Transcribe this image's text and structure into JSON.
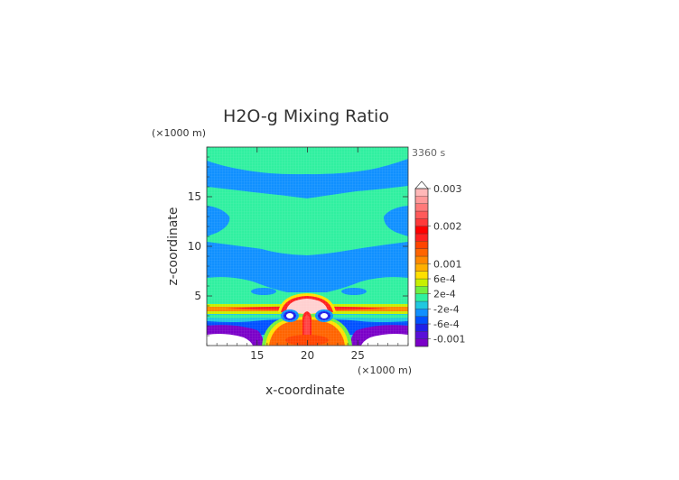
{
  "chart_data": {
    "type": "heatmap",
    "title": "H2O-g Mixing Ratio",
    "time_label": "3360 s",
    "x_unit": "(×1000 m)",
    "y_unit": "(×1000 m)",
    "xlabel": "x-coordinate",
    "ylabel": "z-coordinate",
    "xlim": [
      10,
      30
    ],
    "ylim": [
      0,
      20
    ],
    "x_ticks": [
      15,
      20,
      25
    ],
    "y_ticks": [
      5,
      10,
      15
    ],
    "colorbar": {
      "labels": [
        "0.003",
        "0.002",
        "0.001",
        "6e-4",
        "2e-4",
        "-2e-4",
        "-6e-4",
        "-0.001"
      ],
      "label_values": [
        0.003,
        0.002,
        0.001,
        0.0006,
        0.0002,
        -0.0002,
        -0.0006,
        -0.001
      ],
      "levels": [
        -0.0012,
        -0.001,
        -0.0008,
        -0.0006,
        -0.0004,
        -0.0002,
        0,
        0.0002,
        0.0004,
        0.0006,
        0.0008,
        0.001,
        0.0012,
        0.0014,
        0.0016,
        0.0018,
        0.002,
        0.0022,
        0.0024,
        0.0026,
        0.0028,
        0.003
      ],
      "colors": [
        "#7a00c8",
        "#5a10d8",
        "#2020e8",
        "#0050ff",
        "#1090ff",
        "#20c8e0",
        "#30f0a0",
        "#70f040",
        "#c8f000",
        "#ffe000",
        "#ffb000",
        "#ff8800",
        "#ff6400",
        "#ff4400",
        "#ff2020",
        "#ff0000",
        "#ff3a3a",
        "#ff5a5a",
        "#ff7a7a",
        "#ff9a9a",
        "#ffb8b8"
      ],
      "extend_top": "#ffffff"
    },
    "regions": [
      {
        "name": "upper-band",
        "level": 0,
        "color": "#30f0a0",
        "x": [
          10,
          30
        ],
        "z": [
          16.5,
          20
        ]
      },
      {
        "name": "mid-band",
        "level": 0,
        "color": "#30f0a0",
        "x": [
          10,
          30
        ],
        "z": [
          9,
          14
        ]
      },
      {
        "name": "lower-band",
        "level": 0,
        "color": "#30f0a0",
        "x": [
          10,
          30
        ],
        "z": [
          3.2,
          6.5
        ]
      },
      {
        "name": "cloud-top",
        "level": 0.003,
        "color": "#ffd0d0",
        "x": [
          18.8,
          21.2
        ],
        "z": [
          3.5,
          5.3
        ]
      },
      {
        "name": "updraft-core",
        "level": 0.002,
        "color": "#ff2020",
        "x": [
          19.3,
          20.7
        ],
        "z": [
          0.5,
          3.8
        ]
      },
      {
        "name": "outflow-layer",
        "level": 0.001,
        "color": "#ff6400",
        "x": [
          10,
          30
        ],
        "z": [
          3.3,
          3.9
        ]
      },
      {
        "name": "near-surface-moist",
        "level": 0.001,
        "color": "#ff6400",
        "x": [
          16,
          24
        ],
        "z": [
          0,
          2.3
        ]
      },
      {
        "name": "left-eddy",
        "level": -0.0008,
        "color": "#2020e8",
        "x": [
          17.5,
          19.1
        ],
        "z": [
          2.2,
          3.4
        ]
      },
      {
        "name": "right-eddy",
        "level": -0.0008,
        "color": "#2020e8",
        "x": [
          20.9,
          22.5
        ],
        "z": [
          2.2,
          3.4
        ]
      },
      {
        "name": "dry-surface-left",
        "level": -0.0012,
        "color": "#7a00c8",
        "x": [
          10,
          16
        ],
        "z": [
          0,
          1.5
        ]
      },
      {
        "name": "dry-surface-right",
        "level": -0.0012,
        "color": "#7a00c8",
        "x": [
          24,
          30
        ],
        "z": [
          0,
          1.5
        ]
      }
    ]
  }
}
